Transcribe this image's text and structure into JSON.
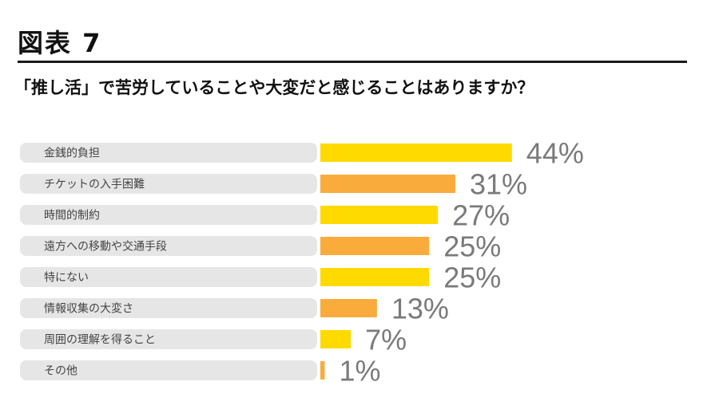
{
  "figure_label": "図表 7",
  "chart_data": {
    "type": "bar",
    "orientation": "horizontal",
    "title": "「推し活」で苦労していることや大変だと感じることはありますか？",
    "categories": [
      "金銭的負担",
      "チケットの入手困難",
      "時間的制約",
      "遠方への移動や交通手段",
      "特にない",
      "情報収集の大変さ",
      "周囲の理解を得ること",
      "その他"
    ],
    "values": [
      44,
      31,
      27,
      25,
      25,
      13,
      7,
      1
    ],
    "value_labels": [
      "44%",
      "31%",
      "27%",
      "25%",
      "25%",
      "13%",
      "7%",
      "1%"
    ],
    "unit": "%",
    "colors": [
      "#FFDA00",
      "#F9AC3B",
      "#FFDA00",
      "#F9AC3B",
      "#FFDA00",
      "#F9AC3B",
      "#FFDA00",
      "#F9AC3B"
    ],
    "label_background": "#e6e6e6"
  }
}
